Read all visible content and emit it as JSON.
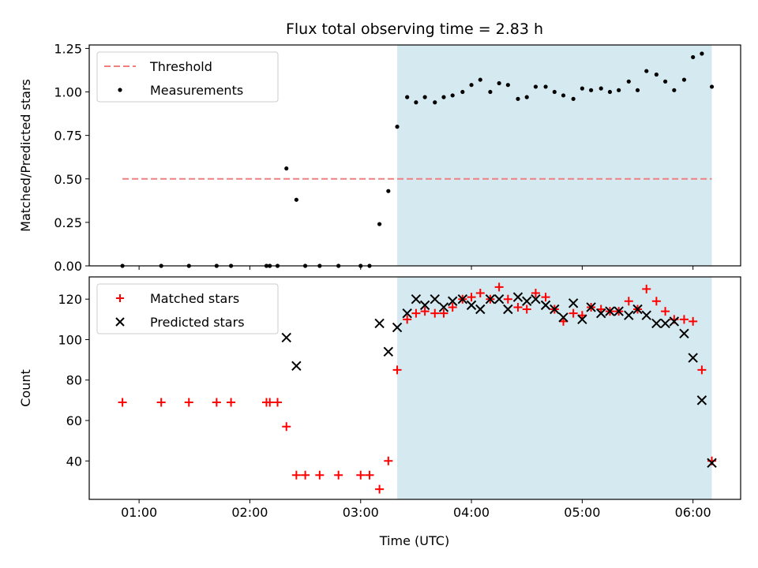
{
  "chart_data": {
    "type": "scatter",
    "title": "Flux total observing time = 2.83 h",
    "xlabel": "Time (UTC)",
    "x_tick_labels": [
      "01:00",
      "02:00",
      "03:00",
      "04:00",
      "05:00",
      "06:00"
    ],
    "x_tick_values": [
      1.0,
      2.0,
      3.0,
      4.0,
      5.0,
      6.0
    ],
    "xlim": [
      0.55,
      6.43
    ],
    "shaded_region": {
      "x_start": 3.33,
      "x_end": 6.17,
      "color": "#d4eaf0"
    },
    "panels": [
      {
        "ylabel": "Matched/Predicted stars",
        "ylim": [
          0,
          1.27
        ],
        "y_ticks": [
          0.0,
          0.25,
          0.5,
          0.75,
          1.0,
          1.25
        ],
        "y_tick_labels": [
          "0.00",
          "0.25",
          "0.50",
          "0.75",
          "1.00",
          "1.25"
        ],
        "legend_position": "top-left",
        "series": [
          {
            "name": "Threshold",
            "kind": "line",
            "color": "#f08080",
            "x": [
              0.85,
              6.17
            ],
            "y": [
              0.5,
              0.5
            ]
          },
          {
            "name": "Measurements",
            "kind": "dot",
            "color": "#000000",
            "x": [
              0.85,
              1.2,
              1.45,
              1.7,
              1.83,
              2.15,
              2.18,
              2.25,
              2.33,
              2.42,
              2.5,
              2.63,
              2.8,
              3.0,
              3.08,
              3.17,
              3.25,
              3.33,
              3.42,
              3.5,
              3.58,
              3.67,
              3.75,
              3.83,
              3.92,
              4.0,
              4.08,
              4.17,
              4.25,
              4.33,
              4.42,
              4.5,
              4.58,
              4.67,
              4.75,
              4.83,
              4.92,
              5.0,
              5.08,
              5.17,
              5.25,
              5.33,
              5.42,
              5.5,
              5.58,
              5.67,
              5.75,
              5.83,
              5.92,
              6.0,
              6.08,
              6.17
            ],
            "y": [
              0.0,
              0.0,
              0.0,
              0.0,
              0.0,
              0.0,
              0.0,
              0.0,
              0.56,
              0.38,
              0.0,
              0.0,
              0.0,
              0.0,
              0.0,
              0.24,
              0.43,
              0.8,
              0.97,
              0.94,
              0.97,
              0.94,
              0.97,
              0.98,
              1.0,
              1.04,
              1.07,
              1.0,
              1.05,
              1.04,
              0.96,
              0.97,
              1.03,
              1.03,
              1.0,
              0.98,
              0.96,
              1.02,
              1.01,
              1.02,
              1.0,
              1.01,
              1.06,
              1.01,
              1.12,
              1.1,
              1.06,
              1.01,
              1.07,
              1.2,
              1.22,
              1.03
            ]
          }
        ]
      },
      {
        "ylabel": "Count",
        "ylim": [
          21,
          131
        ],
        "y_ticks": [
          40,
          60,
          80,
          100,
          120
        ],
        "y_tick_labels": [
          "40",
          "60",
          "80",
          "100",
          "120"
        ],
        "legend_position": "top-left",
        "series": [
          {
            "name": "Matched stars",
            "kind": "plus",
            "color": "#ff0000",
            "x": [
              0.85,
              1.2,
              1.45,
              1.7,
              1.83,
              2.15,
              2.18,
              2.25,
              2.33,
              2.42,
              2.5,
              2.63,
              2.8,
              3.0,
              3.08,
              3.17,
              3.25,
              3.33,
              3.42,
              3.5,
              3.58,
              3.67,
              3.75,
              3.83,
              3.92,
              4.0,
              4.08,
              4.17,
              4.25,
              4.33,
              4.42,
              4.5,
              4.58,
              4.67,
              4.75,
              4.83,
              4.92,
              5.0,
              5.08,
              5.17,
              5.25,
              5.33,
              5.42,
              5.5,
              5.58,
              5.67,
              5.75,
              5.83,
              5.92,
              6.0,
              6.08,
              6.17
            ],
            "y": [
              69,
              69,
              69,
              69,
              69,
              69,
              69,
              69,
              57,
              33,
              33,
              33,
              33,
              33,
              33,
              26,
              40,
              85,
              110,
              113,
              114,
              113,
              113,
              116,
              120,
              121,
              123,
              120,
              126,
              120,
              116,
              115,
              123,
              121,
              115,
              109,
              113,
              112,
              116,
              115,
              114,
              114,
              119,
              115,
              125,
              119,
              114,
              110,
              110,
              109,
              85,
              40
            ]
          },
          {
            "name": "Predicted stars",
            "kind": "cross",
            "color": "#000000",
            "x": [
              2.33,
              2.42,
              3.17,
              3.25,
              3.33,
              3.42,
              3.5,
              3.58,
              3.67,
              3.75,
              3.83,
              3.92,
              4.0,
              4.08,
              4.17,
              4.25,
              4.33,
              4.42,
              4.5,
              4.58,
              4.67,
              4.75,
              4.83,
              4.92,
              5.0,
              5.08,
              5.17,
              5.25,
              5.33,
              5.42,
              5.5,
              5.58,
              5.67,
              5.75,
              5.83,
              5.92,
              6.0,
              6.08,
              6.17
            ],
            "y": [
              101,
              87,
              108,
              94,
              106,
              113,
              120,
              117,
              120,
              116,
              119,
              120,
              117,
              115,
              120,
              120,
              115,
              121,
              119,
              120,
              117,
              115,
              111,
              118,
              110,
              116,
              113,
              114,
              114,
              112,
              115,
              112,
              108,
              108,
              109,
              103,
              91,
              70,
              39
            ]
          }
        ]
      }
    ]
  }
}
